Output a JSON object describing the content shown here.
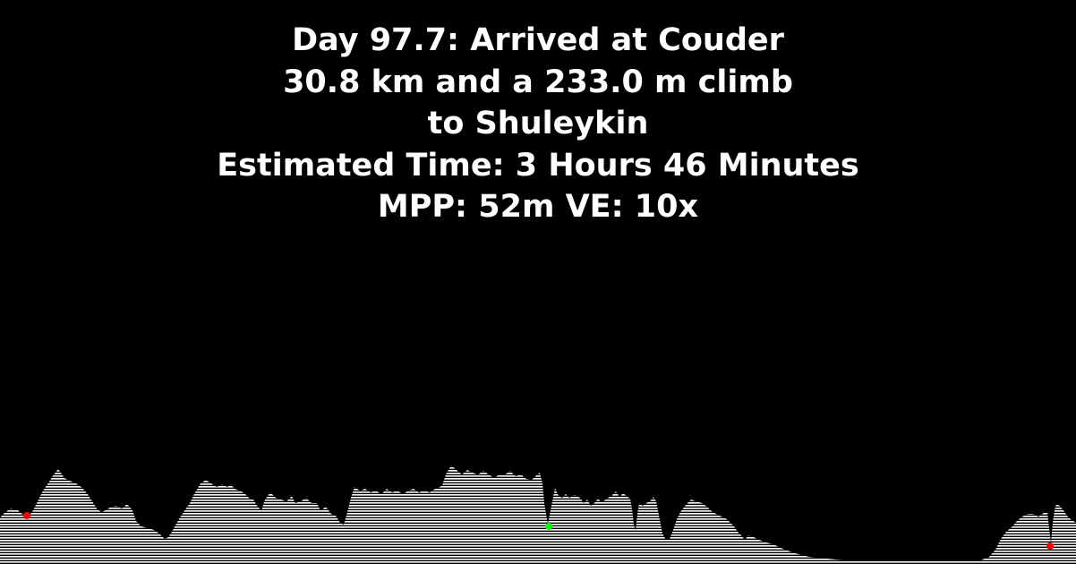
{
  "header": {
    "line1": "Day 97.7: Arrived at Couder",
    "line2": "30.8 km and a 233.0 m climb",
    "line3": "to Shuleykin",
    "line4": "Estimated Time: 3 Hours 46 Minutes",
    "line5": "MPP: 52m VE: 10x"
  },
  "colors": {
    "background": "#000000",
    "text": "#ffffff",
    "terrain": "#ffffff",
    "marker_start": "#ff0000",
    "marker_current": "#00ff00",
    "marker_end": "#ff0000"
  }
}
